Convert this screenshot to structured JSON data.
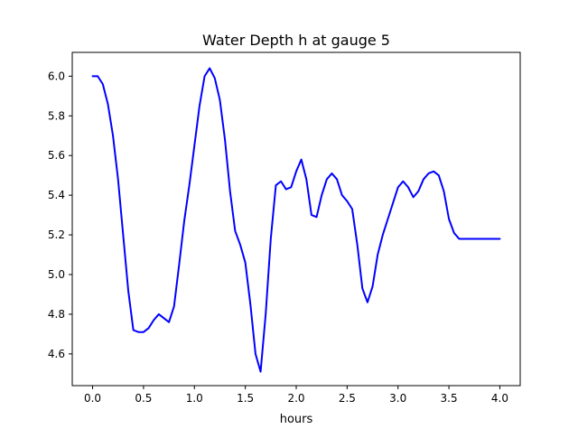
{
  "chart_data": {
    "type": "line",
    "title": "Water Depth h at gauge 5",
    "xlabel": "hours",
    "ylabel": "",
    "xlim": [
      -0.2,
      4.2
    ],
    "ylim": [
      4.44,
      6.12
    ],
    "x_ticks": [
      0.0,
      0.5,
      1.0,
      1.5,
      2.0,
      2.5,
      3.0,
      3.5,
      4.0
    ],
    "x_tick_labels": [
      "0.0",
      "0.5",
      "1.0",
      "1.5",
      "2.0",
      "2.5",
      "3.0",
      "3.5",
      "4.0"
    ],
    "y_ticks": [
      4.6,
      4.8,
      5.0,
      5.2,
      5.4,
      5.6,
      5.8,
      6.0
    ],
    "y_tick_labels": [
      "4.6",
      "4.8",
      "5.0",
      "5.2",
      "5.4",
      "5.6",
      "5.8",
      "6.0"
    ],
    "grid": false,
    "series": [
      {
        "color": "#0000ff",
        "x": [
          0.0,
          0.05,
          0.1,
          0.15,
          0.2,
          0.25,
          0.3,
          0.35,
          0.4,
          0.45,
          0.5,
          0.55,
          0.6,
          0.65,
          0.7,
          0.75,
          0.8,
          0.85,
          0.9,
          0.95,
          1.0,
          1.05,
          1.1,
          1.15,
          1.2,
          1.25,
          1.3,
          1.35,
          1.4,
          1.45,
          1.5,
          1.55,
          1.6,
          1.65,
          1.7,
          1.75,
          1.8,
          1.85,
          1.9,
          1.95,
          2.0,
          2.05,
          2.1,
          2.15,
          2.2,
          2.25,
          2.3,
          2.35,
          2.4,
          2.45,
          2.5,
          2.55,
          2.6,
          2.65,
          2.7,
          2.75,
          2.8,
          2.85,
          2.9,
          2.95,
          3.0,
          3.05,
          3.1,
          3.15,
          3.2,
          3.25,
          3.3,
          3.35,
          3.4,
          3.45,
          3.5,
          3.55,
          3.6,
          3.65,
          3.7,
          3.75,
          3.8,
          3.85,
          3.9,
          3.95,
          4.0
        ],
        "y": [
          6.0,
          6.0,
          5.96,
          5.86,
          5.7,
          5.48,
          5.2,
          4.92,
          4.72,
          4.71,
          4.71,
          4.73,
          4.77,
          4.8,
          4.78,
          4.76,
          4.84,
          5.05,
          5.27,
          5.45,
          5.65,
          5.85,
          6.0,
          6.04,
          5.99,
          5.88,
          5.68,
          5.42,
          5.22,
          5.15,
          5.06,
          4.85,
          4.6,
          4.51,
          4.8,
          5.18,
          5.45,
          5.47,
          5.43,
          5.44,
          5.52,
          5.58,
          5.48,
          5.3,
          5.29,
          5.4,
          5.48,
          5.51,
          5.48,
          5.4,
          5.37,
          5.33,
          5.15,
          4.93,
          4.86,
          4.94,
          5.1,
          5.2,
          5.28,
          5.36,
          5.44,
          5.47,
          5.44,
          5.39,
          5.42,
          5.48,
          5.51,
          5.52,
          5.5,
          5.42,
          5.28,
          5.21,
          5.18,
          5.18,
          5.18,
          5.18,
          5.18,
          5.18,
          5.18,
          5.18,
          5.18
        ]
      }
    ]
  }
}
